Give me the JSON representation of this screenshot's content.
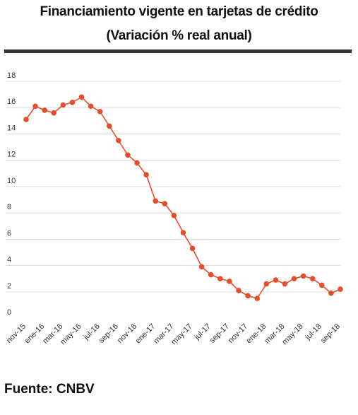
{
  "header": {
    "title_line1": "Financiamiento vigente en tarjetas de crédito",
    "title_line2": "(Variación % real anual)"
  },
  "footer": {
    "source": "Fuente: CNBV"
  },
  "colors": {
    "series": "#e0502e",
    "grid": "#dddddd",
    "rule": "#333333",
    "text": "#111111"
  },
  "chart_data": {
    "type": "line",
    "title": "Financiamiento vigente en tarjetas de crédito (Variación % real anual)",
    "xlabel": "",
    "ylabel": "",
    "ylim": [
      0,
      18
    ],
    "yticks": [
      0,
      2,
      4,
      6,
      8,
      10,
      12,
      14,
      16,
      18
    ],
    "grid": true,
    "legend": "none",
    "x": [
      "nov-15",
      "dic-15",
      "ene-16",
      "feb-16",
      "mar-16",
      "abr-16",
      "may-16",
      "jun-16",
      "jul-16",
      "ago-16",
      "sep-16",
      "oct-16",
      "nov-16",
      "dic-16",
      "ene-17",
      "feb-17",
      "mar-17",
      "abr-17",
      "may-17",
      "jun-17",
      "jul-17",
      "ago-17",
      "sep-17",
      "oct-17",
      "nov-17",
      "dic-17",
      "ene-18",
      "feb-18",
      "mar-18",
      "abr-18",
      "may-18",
      "jun-18",
      "jul-18",
      "ago-18",
      "sep-18"
    ],
    "xtick_labels": [
      "nov-15",
      "ene-16",
      "mar-16",
      "may-16",
      "jul-16",
      "sep-16",
      "nov-16",
      "ene-17",
      "mar-17",
      "may-17",
      "jul-17",
      "sep-17",
      "nov-17",
      "ene-18",
      "mar-18",
      "may-18",
      "jul-18",
      "sep-18"
    ],
    "series": [
      {
        "values": [
          15.1,
          16.1,
          15.8,
          15.6,
          16.2,
          16.4,
          16.8,
          16.1,
          15.7,
          14.6,
          13.5,
          12.4,
          11.8,
          10.9,
          8.9,
          8.7,
          7.8,
          6.5,
          5.3,
          3.9,
          3.3,
          3.0,
          2.8,
          2.1,
          1.7,
          1.5,
          2.6,
          2.9,
          2.6,
          3.0,
          3.2,
          3.0,
          2.5,
          1.9,
          2.2
        ]
      }
    ]
  }
}
